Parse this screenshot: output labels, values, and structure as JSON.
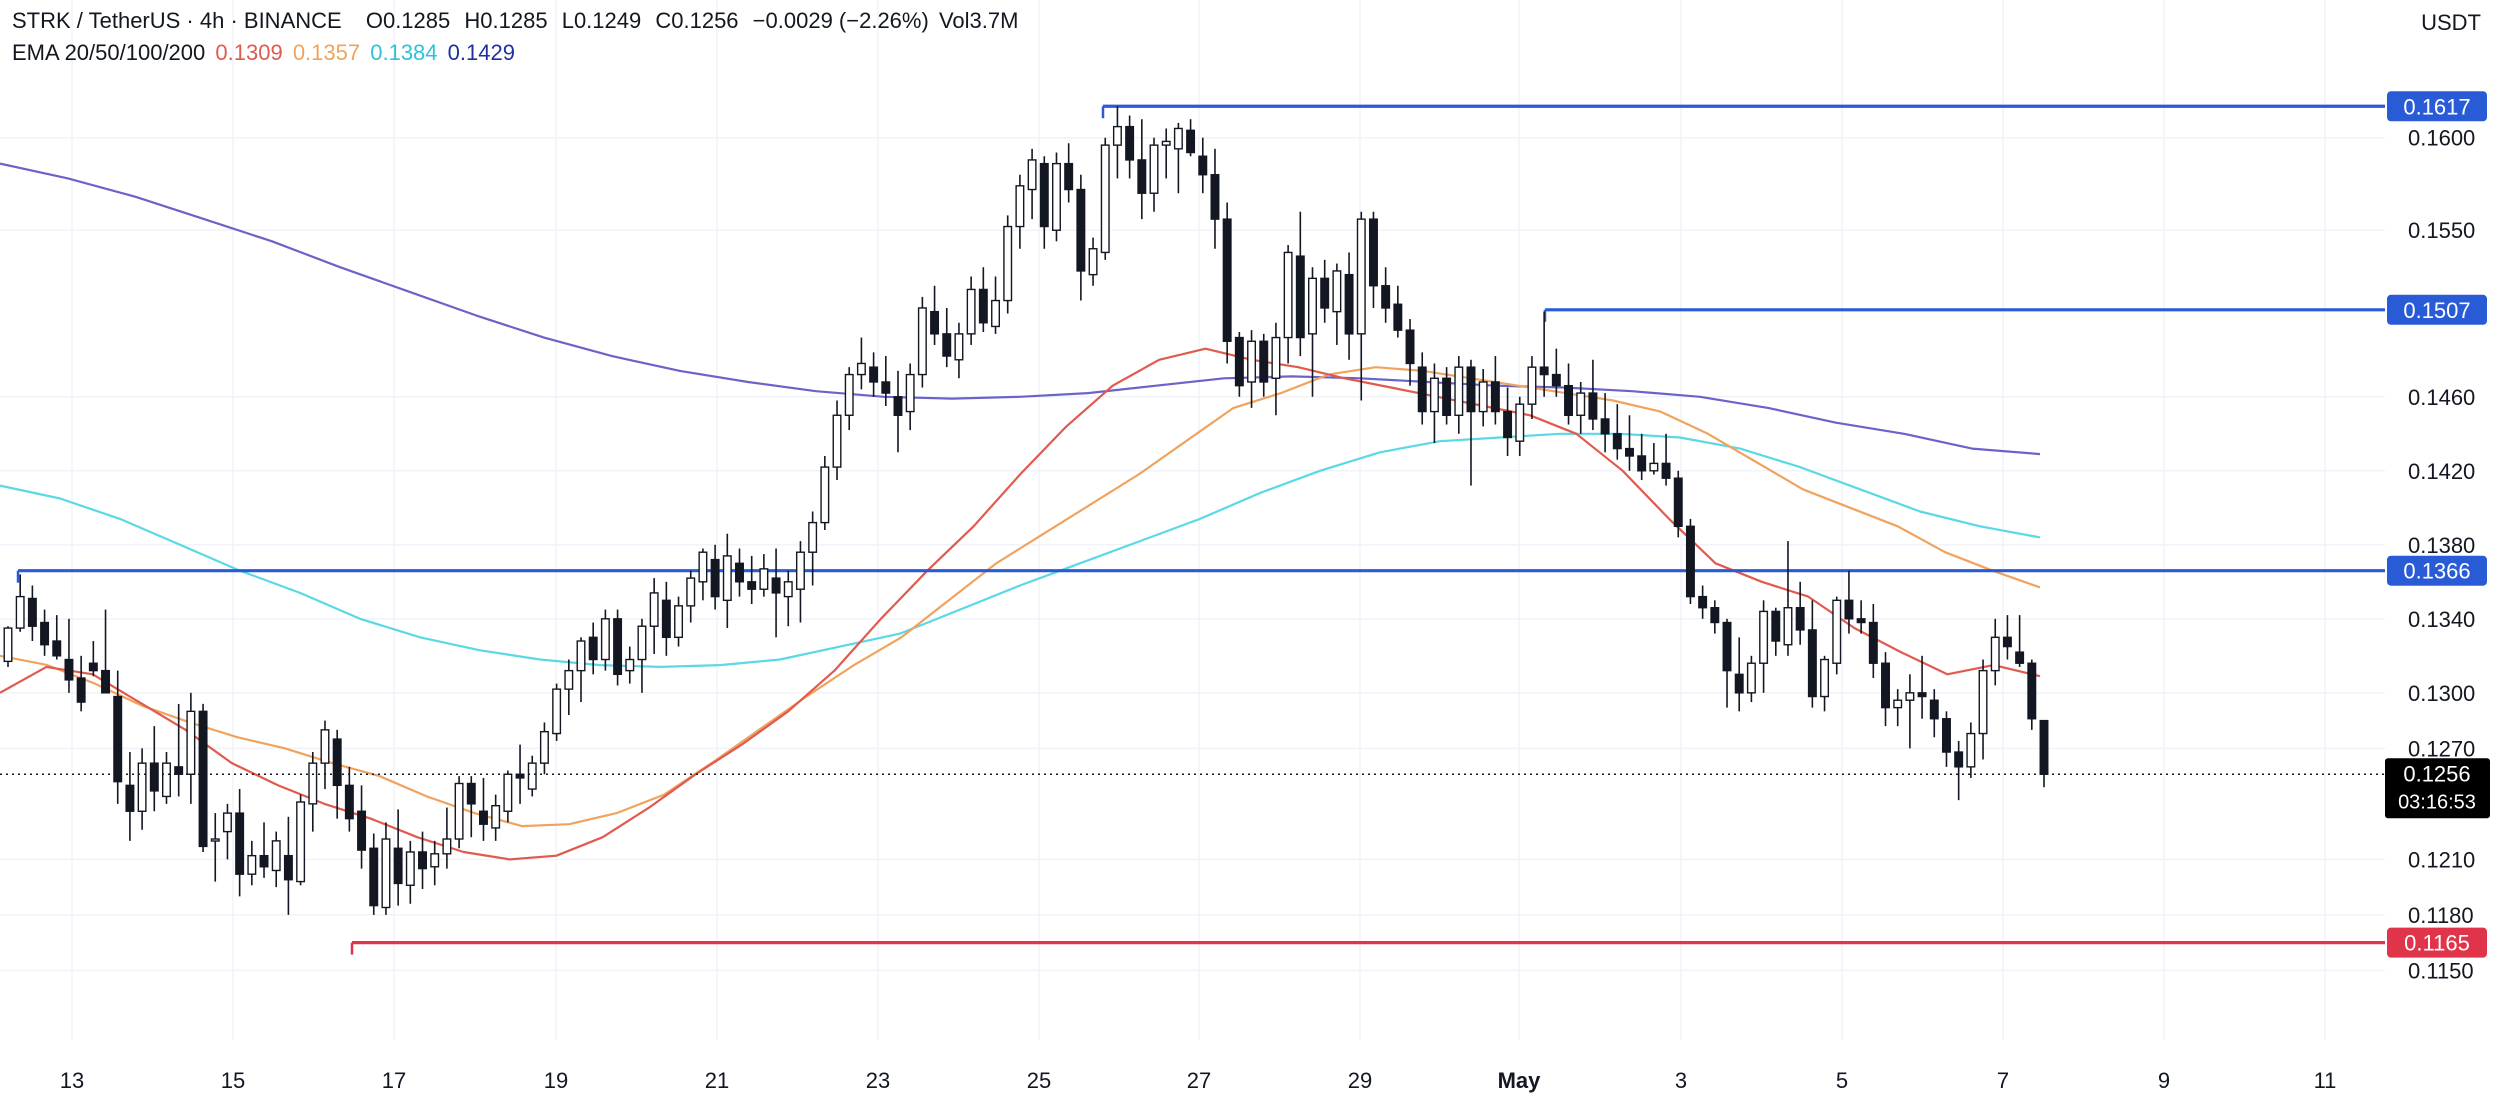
{
  "header": {
    "symbol": "STRK / TetherUS · 4h · BINANCE",
    "open_label": "O",
    "open": "0.1285",
    "high_label": "H",
    "high": "0.1285",
    "low_label": "L",
    "low": "0.1249",
    "close_label": "C",
    "close": "0.1256",
    "change": "−0.0029 (−2.26%)",
    "volume": "Vol3.7M",
    "ema_label": "EMA 20/50/100/200",
    "ema20": "0.1309",
    "ema50": "0.1357",
    "ema100": "0.1384",
    "ema200": "0.1429",
    "currency": "USDT"
  },
  "colors": {
    "ema20": "#e05a4e",
    "ema50": "#f0a35e",
    "ema100": "#5ad8e6",
    "ema200": "#6b63c8",
    "level_line": "#2a5bd7",
    "support_line": "#e0344a",
    "candle": "#131722",
    "grid": "#f0f3fa",
    "ema200_text": "#2030a0"
  },
  "chart_data": {
    "type": "candlestick",
    "symbol": "STRK/USDT",
    "interval": "4h",
    "x_ticks": [
      "13",
      "15",
      "17",
      "19",
      "21",
      "23",
      "25",
      "27",
      "29",
      "May",
      "3",
      "5",
      "7",
      "9",
      "11"
    ],
    "y_ticks": [
      "0.1600",
      "0.1550",
      "0.1460",
      "0.1420",
      "0.1380",
      "0.1340",
      "0.1300",
      "0.1270",
      "0.1210",
      "0.1180",
      "0.1150"
    ],
    "ylim": [
      0.1134,
      0.1642
    ],
    "current_price": {
      "value": 0.1256,
      "label": "0.1256",
      "countdown": "03:16:53"
    },
    "horizontal_levels": [
      {
        "value": 0.1617,
        "label": "0.1617",
        "color": "#2a5bd7"
      },
      {
        "value": 0.1507,
        "label": "0.1507",
        "color": "#2a5bd7"
      },
      {
        "value": 0.1366,
        "label": "0.1366",
        "color": "#2a5bd7"
      },
      {
        "value": 0.1165,
        "label": "0.1165",
        "color": "#e0344a"
      }
    ],
    "candles_ohlc": [
      [
        0.1317,
        0.1336,
        0.1314,
        0.1335
      ],
      [
        0.1335,
        0.1364,
        0.1333,
        0.1352
      ],
      [
        0.1351,
        0.1358,
        0.1328,
        0.1336
      ],
      [
        0.1338,
        0.1345,
        0.132,
        0.1326
      ],
      [
        0.1328,
        0.1342,
        0.1318,
        0.132
      ],
      [
        0.1318,
        0.134,
        0.13,
        0.1307
      ],
      [
        0.1308,
        0.132,
        0.129,
        0.1295
      ],
      [
        0.1316,
        0.1328,
        0.1309,
        0.1312
      ],
      [
        0.1312,
        0.1345,
        0.13,
        0.13
      ],
      [
        0.1298,
        0.1312,
        0.124,
        0.1252
      ],
      [
        0.125,
        0.1268,
        0.122,
        0.1236
      ],
      [
        0.1236,
        0.127,
        0.1226,
        0.1262
      ],
      [
        0.1262,
        0.1282,
        0.1236,
        0.1247
      ],
      [
        0.1244,
        0.1268,
        0.124,
        0.1262
      ],
      [
        0.126,
        0.1294,
        0.1244,
        0.1256
      ],
      [
        0.1256,
        0.13,
        0.124,
        0.129
      ],
      [
        0.129,
        0.1294,
        0.1214,
        0.1217
      ],
      [
        0.122,
        0.1235,
        0.1198,
        0.1221
      ],
      [
        0.1225,
        0.124,
        0.121,
        0.1235
      ],
      [
        0.1235,
        0.1248,
        0.119,
        0.1202
      ],
      [
        0.1202,
        0.122,
        0.1196,
        0.1212
      ],
      [
        0.1212,
        0.123,
        0.12,
        0.1206
      ],
      [
        0.1204,
        0.1225,
        0.1195,
        0.122
      ],
      [
        0.1212,
        0.1233,
        0.118,
        0.1199
      ],
      [
        0.1198,
        0.1245,
        0.1196,
        0.1241
      ],
      [
        0.124,
        0.1268,
        0.1225,
        0.1262
      ],
      [
        0.1262,
        0.1285,
        0.1248,
        0.128
      ],
      [
        0.1275,
        0.128,
        0.1232,
        0.125
      ],
      [
        0.125,
        0.126,
        0.1225,
        0.1232
      ],
      [
        0.1236,
        0.125,
        0.1205,
        0.1215
      ],
      [
        0.1216,
        0.1224,
        0.118,
        0.1185
      ],
      [
        0.1184,
        0.123,
        0.118,
        0.1221
      ],
      [
        0.1216,
        0.1237,
        0.1185,
        0.1197
      ],
      [
        0.1196,
        0.122,
        0.1186,
        0.1214
      ],
      [
        0.1214,
        0.1225,
        0.1194,
        0.1205
      ],
      [
        0.1206,
        0.122,
        0.1196,
        0.1213
      ],
      [
        0.1213,
        0.1238,
        0.1205,
        0.1221
      ],
      [
        0.1221,
        0.1255,
        0.1216,
        0.1251
      ],
      [
        0.1251,
        0.1255,
        0.1222,
        0.124
      ],
      [
        0.1236,
        0.1254,
        0.122,
        0.1229
      ],
      [
        0.1227,
        0.1245,
        0.122,
        0.1239
      ],
      [
        0.1236,
        0.1258,
        0.123,
        0.1256
      ],
      [
        0.1256,
        0.1272,
        0.124,
        0.1254
      ],
      [
        0.1248,
        0.1266,
        0.1244,
        0.1262
      ],
      [
        0.1262,
        0.1284,
        0.1256,
        0.1279
      ],
      [
        0.1278,
        0.1305,
        0.1274,
        0.1302
      ],
      [
        0.1302,
        0.1318,
        0.1288,
        0.1312
      ],
      [
        0.1312,
        0.133,
        0.1295,
        0.1328
      ],
      [
        0.133,
        0.1338,
        0.131,
        0.1318
      ],
      [
        0.1318,
        0.1345,
        0.1312,
        0.134
      ],
      [
        0.134,
        0.1345,
        0.1304,
        0.131
      ],
      [
        0.1312,
        0.1325,
        0.1305,
        0.1318
      ],
      [
        0.1318,
        0.134,
        0.13,
        0.1336
      ],
      [
        0.1336,
        0.1362,
        0.1321,
        0.1354
      ],
      [
        0.135,
        0.136,
        0.132,
        0.133
      ],
      [
        0.133,
        0.1352,
        0.1325,
        0.1347
      ],
      [
        0.1347,
        0.1366,
        0.1338,
        0.1362
      ],
      [
        0.136,
        0.1378,
        0.135,
        0.1376
      ],
      [
        0.1372,
        0.138,
        0.1345,
        0.1352
      ],
      [
        0.135,
        0.1386,
        0.1335,
        0.1374
      ],
      [
        0.137,
        0.1378,
        0.1352,
        0.136
      ],
      [
        0.136,
        0.1374,
        0.1348,
        0.1356
      ],
      [
        0.1356,
        0.1375,
        0.1352,
        0.1367
      ],
      [
        0.1362,
        0.1378,
        0.133,
        0.1354
      ],
      [
        0.1352,
        0.1366,
        0.1336,
        0.136
      ],
      [
        0.1356,
        0.1382,
        0.1338,
        0.1376
      ],
      [
        0.1376,
        0.1398,
        0.1358,
        0.1392
      ],
      [
        0.1392,
        0.1428,
        0.1388,
        0.1422
      ],
      [
        0.1422,
        0.1458,
        0.1415,
        0.145
      ],
      [
        0.145,
        0.1476,
        0.1442,
        0.1472
      ],
      [
        0.1472,
        0.1492,
        0.1464,
        0.1478
      ],
      [
        0.1476,
        0.1484,
        0.146,
        0.1468
      ],
      [
        0.1468,
        0.1482,
        0.1455,
        0.1462
      ],
      [
        0.146,
        0.1474,
        0.143,
        0.145
      ],
      [
        0.1452,
        0.1478,
        0.1442,
        0.1472
      ],
      [
        0.1472,
        0.1514,
        0.1465,
        0.1508
      ],
      [
        0.1506,
        0.152,
        0.1488,
        0.1494
      ],
      [
        0.1494,
        0.1508,
        0.1476,
        0.1482
      ],
      [
        0.148,
        0.15,
        0.147,
        0.1494
      ],
      [
        0.1494,
        0.1525,
        0.1488,
        0.1518
      ],
      [
        0.1518,
        0.153,
        0.1495,
        0.15
      ],
      [
        0.1498,
        0.1525,
        0.1494,
        0.1512
      ],
      [
        0.1512,
        0.1558,
        0.1505,
        0.1552
      ],
      [
        0.1552,
        0.158,
        0.154,
        0.1574
      ],
      [
        0.1572,
        0.1594,
        0.1556,
        0.1588
      ],
      [
        0.1586,
        0.159,
        0.154,
        0.1552
      ],
      [
        0.155,
        0.1592,
        0.1544,
        0.1586
      ],
      [
        0.1586,
        0.1597,
        0.1565,
        0.1572
      ],
      [
        0.1572,
        0.158,
        0.1512,
        0.1528
      ],
      [
        0.1526,
        0.1546,
        0.152,
        0.154
      ],
      [
        0.1538,
        0.16,
        0.1534,
        0.1596
      ],
      [
        0.1596,
        0.1617,
        0.1578,
        0.1606
      ],
      [
        0.1606,
        0.1612,
        0.1578,
        0.1588
      ],
      [
        0.1588,
        0.161,
        0.1556,
        0.157
      ],
      [
        0.157,
        0.16,
        0.156,
        0.1596
      ],
      [
        0.1596,
        0.1605,
        0.1578,
        0.1598
      ],
      [
        0.1594,
        0.1608,
        0.157,
        0.1605
      ],
      [
        0.1604,
        0.161,
        0.159,
        0.1592
      ],
      [
        0.159,
        0.16,
        0.157,
        0.158
      ],
      [
        0.158,
        0.1594,
        0.154,
        0.1556
      ],
      [
        0.1556,
        0.1565,
        0.1478,
        0.149
      ],
      [
        0.1492,
        0.1495,
        0.146,
        0.1466
      ],
      [
        0.1468,
        0.1496,
        0.1454,
        0.149
      ],
      [
        0.149,
        0.1494,
        0.146,
        0.1468
      ],
      [
        0.147,
        0.15,
        0.145,
        0.1492
      ],
      [
        0.1492,
        0.1542,
        0.1478,
        0.1538
      ],
      [
        0.1536,
        0.156,
        0.1482,
        0.1492
      ],
      [
        0.1494,
        0.153,
        0.146,
        0.1524
      ],
      [
        0.1524,
        0.1534,
        0.15,
        0.1508
      ],
      [
        0.1506,
        0.1532,
        0.1488,
        0.1528
      ],
      [
        0.1526,
        0.1538,
        0.148,
        0.1494
      ],
      [
        0.1494,
        0.156,
        0.1458,
        0.1556
      ],
      [
        0.1556,
        0.156,
        0.1508,
        0.152
      ],
      [
        0.152,
        0.153,
        0.15,
        0.1508
      ],
      [
        0.151,
        0.152,
        0.1492,
        0.1496
      ],
      [
        0.1496,
        0.1502,
        0.1466,
        0.1478
      ],
      [
        0.1476,
        0.1484,
        0.1445,
        0.1452
      ],
      [
        0.1452,
        0.1478,
        0.1435,
        0.147
      ],
      [
        0.147,
        0.1476,
        0.1445,
        0.145
      ],
      [
        0.145,
        0.1482,
        0.144,
        0.1476
      ],
      [
        0.1476,
        0.148,
        0.1412,
        0.1452
      ],
      [
        0.1452,
        0.1475,
        0.1444,
        0.1468
      ],
      [
        0.1468,
        0.1482,
        0.1445,
        0.1452
      ],
      [
        0.1452,
        0.1465,
        0.1428,
        0.1438
      ],
      [
        0.1436,
        0.146,
        0.1428,
        0.1456
      ],
      [
        0.1456,
        0.1482,
        0.1448,
        0.1476
      ],
      [
        0.1476,
        0.1506,
        0.146,
        0.1472
      ],
      [
        0.1472,
        0.1486,
        0.146,
        0.1466
      ],
      [
        0.1466,
        0.1478,
        0.1445,
        0.145
      ],
      [
        0.145,
        0.1468,
        0.144,
        0.1462
      ],
      [
        0.1462,
        0.148,
        0.1442,
        0.1448
      ],
      [
        0.1448,
        0.1462,
        0.143,
        0.144
      ],
      [
        0.144,
        0.1456,
        0.1426,
        0.1432
      ],
      [
        0.1432,
        0.145,
        0.142,
        0.1428
      ],
      [
        0.1428,
        0.144,
        0.1415,
        0.142
      ],
      [
        0.142,
        0.1435,
        0.1418,
        0.1424
      ],
      [
        0.1424,
        0.144,
        0.1412,
        0.1416
      ],
      [
        0.1416,
        0.142,
        0.1384,
        0.139
      ],
      [
        0.139,
        0.1394,
        0.1348,
        0.1352
      ],
      [
        0.1352,
        0.1358,
        0.134,
        0.1346
      ],
      [
        0.1346,
        0.135,
        0.1332,
        0.1338
      ],
      [
        0.1338,
        0.134,
        0.1292,
        0.1312
      ],
      [
        0.131,
        0.133,
        0.129,
        0.13
      ],
      [
        0.13,
        0.132,
        0.1295,
        0.1316
      ],
      [
        0.1316,
        0.135,
        0.13,
        0.1344
      ],
      [
        0.1344,
        0.1346,
        0.132,
        0.1328
      ],
      [
        0.1326,
        0.1382,
        0.132,
        0.1346
      ],
      [
        0.1346,
        0.136,
        0.1326,
        0.1334
      ],
      [
        0.1334,
        0.135,
        0.1292,
        0.1298
      ],
      [
        0.1298,
        0.132,
        0.129,
        0.1318
      ],
      [
        0.1316,
        0.1352,
        0.131,
        0.135
      ],
      [
        0.135,
        0.1366,
        0.1332,
        0.134
      ],
      [
        0.134,
        0.135,
        0.1332,
        0.1338
      ],
      [
        0.1338,
        0.1348,
        0.1308,
        0.1316
      ],
      [
        0.1316,
        0.1322,
        0.1282,
        0.1292
      ],
      [
        0.1292,
        0.1302,
        0.1282,
        0.1296
      ],
      [
        0.1296,
        0.131,
        0.127,
        0.13
      ],
      [
        0.13,
        0.132,
        0.1286,
        0.1298
      ],
      [
        0.1296,
        0.1302,
        0.1276,
        0.1286
      ],
      [
        0.1286,
        0.129,
        0.126,
        0.1268
      ],
      [
        0.1268,
        0.1274,
        0.1242,
        0.126
      ],
      [
        0.126,
        0.1284,
        0.1254,
        0.1278
      ],
      [
        0.1278,
        0.1318,
        0.1264,
        0.1312
      ],
      [
        0.1312,
        0.134,
        0.1304,
        0.133
      ],
      [
        0.133,
        0.1342,
        0.1318,
        0.1325
      ],
      [
        0.1322,
        0.1342,
        0.1314,
        0.1316
      ],
      [
        0.1316,
        0.1318,
        0.128,
        0.1286
      ],
      [
        0.1285,
        0.1285,
        0.1249,
        0.1256
      ]
    ],
    "ema20": [
      0.13,
      0.1314,
      0.131,
      0.1295,
      0.128,
      0.1262,
      0.125,
      0.124,
      0.1232,
      0.1222,
      0.1214,
      0.121,
      0.1212,
      0.1222,
      0.1238,
      0.1256,
      0.1272,
      0.129,
      0.1312,
      0.134,
      0.1366,
      0.139,
      0.1418,
      0.1444,
      0.1466,
      0.148,
      0.1486,
      0.148,
      0.1476,
      0.147,
      0.1465,
      0.146,
      0.1455,
      0.145,
      0.144,
      0.142,
      0.1394,
      0.137,
      0.136,
      0.1352,
      0.1335,
      0.1322,
      0.131,
      0.1315,
      0.1309
    ],
    "ema50": [
      0.132,
      0.1315,
      0.1305,
      0.1293,
      0.1284,
      0.1276,
      0.127,
      0.1262,
      0.1255,
      0.1244,
      0.1235,
      0.1228,
      0.1229,
      0.1235,
      0.1245,
      0.1262,
      0.128,
      0.1298,
      0.1315,
      0.133,
      0.135,
      0.137,
      0.1386,
      0.1402,
      0.1418,
      0.1436,
      0.1454,
      0.1462,
      0.1472,
      0.1476,
      0.1474,
      0.147,
      0.1466,
      0.1462,
      0.1458,
      0.1452,
      0.144,
      0.1425,
      0.141,
      0.14,
      0.139,
      0.1376,
      0.1366,
      0.1357
    ],
    "ema100": [
      0.1412,
      0.1405,
      0.1394,
      0.138,
      0.1366,
      0.1354,
      0.134,
      0.133,
      0.1323,
      0.1318,
      0.1315,
      0.1314,
      0.1315,
      0.1318,
      0.1325,
      0.1332,
      0.1345,
      0.1358,
      0.137,
      0.1382,
      0.1394,
      0.1408,
      0.142,
      0.143,
      0.1436,
      0.1438,
      0.144,
      0.144,
      0.1438,
      0.1432,
      0.1422,
      0.141,
      0.1398,
      0.139,
      0.1384
    ],
    "ema200": [
      0.1586,
      0.1578,
      0.1568,
      0.1556,
      0.1544,
      0.153,
      0.1517,
      0.1504,
      0.1492,
      0.1482,
      0.1474,
      0.1468,
      0.1463,
      0.146,
      0.1459,
      0.146,
      0.1462,
      0.1466,
      0.147,
      0.1471,
      0.147,
      0.1468,
      0.1466,
      0.1465,
      0.1463,
      0.146,
      0.1454,
      0.1446,
      0.144,
      0.1432,
      0.1429
    ]
  }
}
